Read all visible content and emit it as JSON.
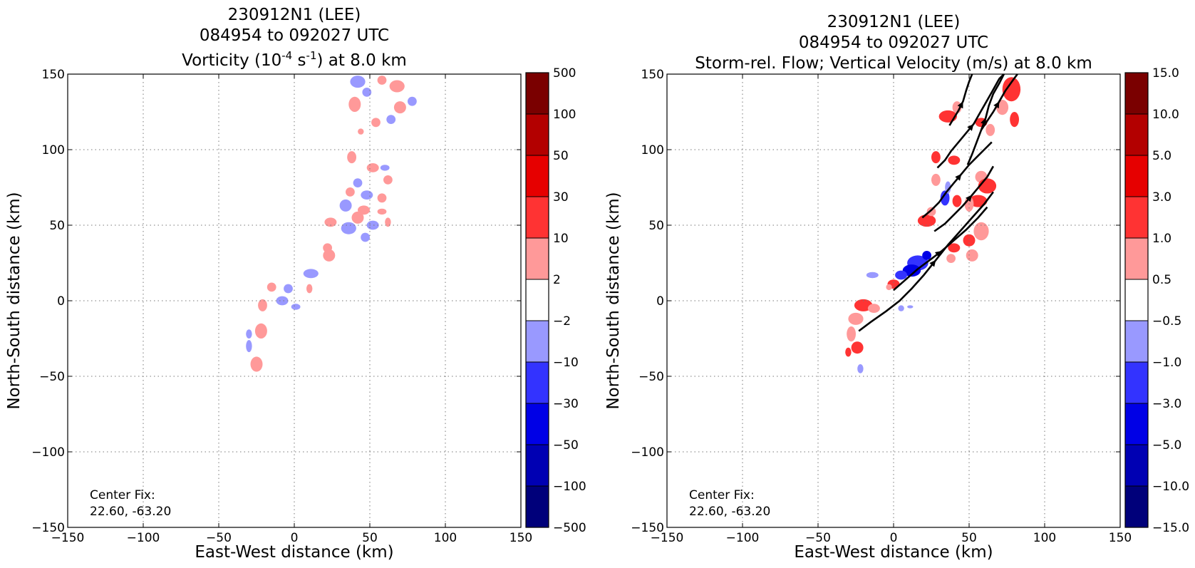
{
  "chart_data": [
    {
      "type": "heatmap",
      "title_lines": [
        "230912N1 (LEE)",
        "084954 to 092027 UTC"
      ],
      "title_main": {
        "pre": "Vorticity (10",
        "sup1": "-4",
        "mid": " s",
        "sup2": "-1",
        "post": ") at 8.0 km"
      },
      "xlabel": "East-West distance (km)",
      "ylabel": "North-South distance (km)",
      "xlim": [
        -150,
        150
      ],
      "ylim": [
        -150,
        150
      ],
      "xticks": [
        -150,
        -100,
        -50,
        0,
        50,
        100,
        150
      ],
      "yticks": [
        -150,
        -100,
        -50,
        0,
        50,
        100,
        150
      ],
      "xtick_labels": [
        "−150",
        "−100",
        "−50",
        "0",
        "50",
        "100",
        "150"
      ],
      "ytick_labels": [
        "−150",
        "−100",
        "−50",
        "0",
        "50",
        "100",
        "150"
      ],
      "grid": true,
      "annotation": [
        "Center Fix:",
        "22.60, -63.20"
      ],
      "colorbar": {
        "labels": [
          "500",
          "100",
          "50",
          "30",
          "10",
          "2",
          "−2",
          "−10",
          "−30",
          "−50",
          "−100",
          "−500"
        ],
        "colors": [
          "#7a0000",
          "#b30000",
          "#e60000",
          "#ff3333",
          "#ff9999",
          "#ffffff",
          "#9999ff",
          "#3333ff",
          "#0000e6",
          "#0000b3",
          "#00007a"
        ]
      },
      "patches": [
        {
          "x": 42,
          "y": 145,
          "rx": 5,
          "ry": 4,
          "c": 6
        },
        {
          "x": 58,
          "y": 146,
          "rx": 3,
          "ry": 3,
          "c": 4
        },
        {
          "x": 68,
          "y": 142,
          "rx": 5,
          "ry": 4,
          "c": 4
        },
        {
          "x": 48,
          "y": 138,
          "rx": 3,
          "ry": 3,
          "c": 6
        },
        {
          "x": 40,
          "y": 130,
          "rx": 4,
          "ry": 5,
          "c": 4
        },
        {
          "x": 70,
          "y": 128,
          "rx": 4,
          "ry": 4,
          "c": 4
        },
        {
          "x": 78,
          "y": 132,
          "rx": 3,
          "ry": 3,
          "c": 6
        },
        {
          "x": 54,
          "y": 118,
          "rx": 3,
          "ry": 3,
          "c": 4
        },
        {
          "x": 64,
          "y": 120,
          "rx": 3,
          "ry": 3,
          "c": 6
        },
        {
          "x": 44,
          "y": 112,
          "rx": 2,
          "ry": 2,
          "c": 4
        },
        {
          "x": 38,
          "y": 95,
          "rx": 3,
          "ry": 4,
          "c": 4
        },
        {
          "x": 52,
          "y": 88,
          "rx": 4,
          "ry": 3,
          "c": 4
        },
        {
          "x": 60,
          "y": 88,
          "rx": 3,
          "ry": 2,
          "c": 6
        },
        {
          "x": 42,
          "y": 78,
          "rx": 3,
          "ry": 3,
          "c": 6
        },
        {
          "x": 62,
          "y": 80,
          "rx": 3,
          "ry": 3,
          "c": 4
        },
        {
          "x": 37,
          "y": 72,
          "rx": 3,
          "ry": 3,
          "c": 4
        },
        {
          "x": 48,
          "y": 70,
          "rx": 4,
          "ry": 3,
          "c": 6
        },
        {
          "x": 58,
          "y": 68,
          "rx": 3,
          "ry": 3,
          "c": 4
        },
        {
          "x": 34,
          "y": 63,
          "rx": 4,
          "ry": 4,
          "c": 6
        },
        {
          "x": 46,
          "y": 60,
          "rx": 4,
          "ry": 3,
          "c": 4
        },
        {
          "x": 42,
          "y": 55,
          "rx": 4,
          "ry": 4,
          "c": 4
        },
        {
          "x": 58,
          "y": 59,
          "rx": 3,
          "ry": 2,
          "c": 4
        },
        {
          "x": 36,
          "y": 48,
          "rx": 5,
          "ry": 4,
          "c": 6
        },
        {
          "x": 52,
          "y": 50,
          "rx": 4,
          "ry": 3,
          "c": 6
        },
        {
          "x": 62,
          "y": 52,
          "rx": 2,
          "ry": 3,
          "c": 4
        },
        {
          "x": 24,
          "y": 52,
          "rx": 4,
          "ry": 3,
          "c": 4
        },
        {
          "x": 47,
          "y": 42,
          "rx": 3,
          "ry": 3,
          "c": 6
        },
        {
          "x": 22,
          "y": 35,
          "rx": 3,
          "ry": 3,
          "c": 4
        },
        {
          "x": 23,
          "y": 30,
          "rx": 4,
          "ry": 4,
          "c": 4
        },
        {
          "x": 11,
          "y": 18,
          "rx": 5,
          "ry": 3,
          "c": 6
        },
        {
          "x": -15,
          "y": 9,
          "rx": 3,
          "ry": 3,
          "c": 4
        },
        {
          "x": -4,
          "y": 8,
          "rx": 3,
          "ry": 3,
          "c": 6
        },
        {
          "x": 10,
          "y": 8,
          "rx": 2,
          "ry": 3,
          "c": 4
        },
        {
          "x": -21,
          "y": -3,
          "rx": 3,
          "ry": 4,
          "c": 4
        },
        {
          "x": -8,
          "y": 0,
          "rx": 4,
          "ry": 3,
          "c": 6
        },
        {
          "x": 1,
          "y": -4,
          "rx": 3,
          "ry": 2,
          "c": 6
        },
        {
          "x": -22,
          "y": -20,
          "rx": 4,
          "ry": 5,
          "c": 4
        },
        {
          "x": -30,
          "y": -22,
          "rx": 2,
          "ry": 3,
          "c": 6
        },
        {
          "x": -30,
          "y": -30,
          "rx": 2,
          "ry": 4,
          "c": 6
        },
        {
          "x": -25,
          "y": -42,
          "rx": 4,
          "ry": 5,
          "c": 4
        }
      ]
    },
    {
      "type": "heatmap",
      "title_lines": [
        "230912N1 (LEE)",
        "084954 to 092027 UTC",
        "Storm-rel. Flow; Vertical Velocity (m/s) at 8.0 km"
      ],
      "xlabel": "East-West distance (km)",
      "ylabel": "North-South distance (km)",
      "xlim": [
        -150,
        150
      ],
      "ylim": [
        -150,
        150
      ],
      "xticks": [
        -150,
        -100,
        -50,
        0,
        50,
        100,
        150
      ],
      "yticks": [
        -150,
        -100,
        -50,
        0,
        50,
        100,
        150
      ],
      "xtick_labels": [
        "−150",
        "−100",
        "−50",
        "0",
        "50",
        "100",
        "150"
      ],
      "ytick_labels": [
        "−150",
        "−100",
        "−50",
        "0",
        "50",
        "100",
        "150"
      ],
      "grid": true,
      "annotation": [
        "Center Fix:",
        "22.60, -63.20"
      ],
      "colorbar": {
        "labels": [
          "15.0",
          "10.0",
          "5.0",
          "3.0",
          "1.0",
          "0.5",
          "−0.5",
          "−1.0",
          "−3.0",
          "−5.0",
          "−10.0",
          "−15.0"
        ],
        "colors": [
          "#7a0000",
          "#b30000",
          "#e60000",
          "#ff3333",
          "#ff9999",
          "#ffffff",
          "#9999ff",
          "#3333ff",
          "#0000e6",
          "#0000b3",
          "#00007a"
        ]
      },
      "patches": [
        {
          "x": 78,
          "y": 140,
          "rx": 6,
          "ry": 8,
          "c": 3
        },
        {
          "x": 72,
          "y": 128,
          "rx": 4,
          "ry": 5,
          "c": 4
        },
        {
          "x": 80,
          "y": 120,
          "rx": 3,
          "ry": 5,
          "c": 3
        },
        {
          "x": 36,
          "y": 122,
          "rx": 6,
          "ry": 4,
          "c": 3
        },
        {
          "x": 42,
          "y": 128,
          "rx": 3,
          "ry": 4,
          "c": 4
        },
        {
          "x": 58,
          "y": 118,
          "rx": 4,
          "ry": 3,
          "c": 3
        },
        {
          "x": 64,
          "y": 113,
          "rx": 3,
          "ry": 4,
          "c": 4
        },
        {
          "x": 28,
          "y": 95,
          "rx": 3,
          "ry": 4,
          "c": 3
        },
        {
          "x": 40,
          "y": 93,
          "rx": 4,
          "ry": 3,
          "c": 3
        },
        {
          "x": 28,
          "y": 80,
          "rx": 3,
          "ry": 4,
          "c": 4
        },
        {
          "x": 58,
          "y": 82,
          "rx": 4,
          "ry": 4,
          "c": 4
        },
        {
          "x": 62,
          "y": 76,
          "rx": 6,
          "ry": 5,
          "c": 3
        },
        {
          "x": 56,
          "y": 66,
          "rx": 6,
          "ry": 4,
          "c": 3
        },
        {
          "x": 50,
          "y": 64,
          "rx": 3,
          "ry": 5,
          "c": 4
        },
        {
          "x": 34,
          "y": 68,
          "rx": 3,
          "ry": 5,
          "c": 7
        },
        {
          "x": 36,
          "y": 75,
          "rx": 2,
          "ry": 4,
          "c": 6
        },
        {
          "x": 42,
          "y": 66,
          "rx": 3,
          "ry": 4,
          "c": 3
        },
        {
          "x": 22,
          "y": 53,
          "rx": 6,
          "ry": 4,
          "c": 3
        },
        {
          "x": 25,
          "y": 59,
          "rx": 3,
          "ry": 3,
          "c": 4
        },
        {
          "x": 58,
          "y": 46,
          "rx": 5,
          "ry": 6,
          "c": 4
        },
        {
          "x": 50,
          "y": 40,
          "rx": 4,
          "ry": 4,
          "c": 3
        },
        {
          "x": 40,
          "y": 35,
          "rx": 4,
          "ry": 3,
          "c": 3
        },
        {
          "x": 52,
          "y": 30,
          "rx": 4,
          "ry": 4,
          "c": 4
        },
        {
          "x": 38,
          "y": 28,
          "rx": 3,
          "ry": 3,
          "c": 4
        },
        {
          "x": 16,
          "y": 25,
          "rx": 7,
          "ry": 5,
          "c": 7
        },
        {
          "x": 12,
          "y": 20,
          "rx": 6,
          "ry": 4,
          "c": 8
        },
        {
          "x": 5,
          "y": 17,
          "rx": 4,
          "ry": 3,
          "c": 7
        },
        {
          "x": 22,
          "y": 30,
          "rx": 3,
          "ry": 3,
          "c": 8
        },
        {
          "x": -14,
          "y": 17,
          "rx": 4,
          "ry": 2,
          "c": 6
        },
        {
          "x": 0,
          "y": 11,
          "rx": 4,
          "ry": 3,
          "c": 3
        },
        {
          "x": -3,
          "y": 9,
          "rx": 2,
          "ry": 2,
          "c": 4
        },
        {
          "x": -20,
          "y": -3,
          "rx": 6,
          "ry": 4,
          "c": 3
        },
        {
          "x": -25,
          "y": -12,
          "rx": 5,
          "ry": 4,
          "c": 4
        },
        {
          "x": -13,
          "y": -5,
          "rx": 4,
          "ry": 3,
          "c": 4
        },
        {
          "x": -28,
          "y": -22,
          "rx": 3,
          "ry": 5,
          "c": 4
        },
        {
          "x": -24,
          "y": -31,
          "rx": 4,
          "ry": 4,
          "c": 3
        },
        {
          "x": -30,
          "y": -34,
          "rx": 2,
          "ry": 3,
          "c": 3
        },
        {
          "x": -22,
          "y": -45,
          "rx": 2,
          "ry": 3,
          "c": 6
        },
        {
          "x": 5,
          "y": -5,
          "rx": 2,
          "ry": 2,
          "c": 6
        },
        {
          "x": 11,
          "y": -4,
          "rx": 2,
          "ry": 1,
          "c": 6
        }
      ],
      "streamlines": [
        [
          [
            -23,
            -20
          ],
          [
            -15,
            -14
          ],
          [
            -5,
            -7
          ],
          [
            4,
            0
          ],
          [
            12,
            8
          ],
          [
            20,
            17
          ],
          [
            28,
            27
          ],
          [
            36,
            37
          ],
          [
            44,
            46
          ],
          [
            52,
            55
          ],
          [
            60,
            64
          ],
          [
            66,
            72
          ]
        ],
        [
          [
            0,
            7
          ],
          [
            8,
            14
          ],
          [
            16,
            21
          ],
          [
            24,
            27
          ],
          [
            32,
            33
          ],
          [
            40,
            40
          ],
          [
            48,
            47
          ],
          [
            56,
            55
          ],
          [
            62,
            62
          ]
        ],
        [
          [
            19,
            55
          ],
          [
            25,
            60
          ],
          [
            30,
            65
          ],
          [
            35,
            72
          ],
          [
            40,
            78
          ],
          [
            45,
            84
          ],
          [
            50,
            90
          ],
          [
            55,
            95
          ],
          [
            60,
            100
          ],
          [
            65,
            105
          ]
        ],
        [
          [
            27,
            46
          ],
          [
            34,
            51
          ],
          [
            40,
            57
          ],
          [
            46,
            63
          ],
          [
            52,
            70
          ],
          [
            57,
            76
          ],
          [
            62,
            82
          ],
          [
            66,
            89
          ]
        ],
        [
          [
            29,
            88
          ],
          [
            34,
            93
          ],
          [
            38,
            99
          ],
          [
            43,
            105
          ],
          [
            48,
            111
          ],
          [
            53,
            117
          ],
          [
            57,
            124
          ],
          [
            61,
            131
          ],
          [
            65,
            138
          ],
          [
            70,
            147
          ],
          [
            73,
            150
          ]
        ],
        [
          [
            37,
            116
          ],
          [
            40,
            121
          ],
          [
            43,
            126
          ],
          [
            46,
            132
          ],
          [
            48,
            139
          ],
          [
            50,
            145
          ],
          [
            52,
            150
          ]
        ],
        [
          [
            49,
            90
          ],
          [
            52,
            97
          ],
          [
            55,
            105
          ],
          [
            58,
            113
          ],
          [
            61,
            121
          ],
          [
            63,
            129
          ],
          [
            66,
            137
          ],
          [
            70,
            144
          ],
          [
            73,
            150
          ]
        ],
        [
          [
            58,
            113
          ],
          [
            62,
            119
          ],
          [
            66,
            125
          ],
          [
            70,
            132
          ],
          [
            74,
            139
          ],
          [
            79,
            146
          ],
          [
            82,
            150
          ]
        ]
      ]
    }
  ]
}
